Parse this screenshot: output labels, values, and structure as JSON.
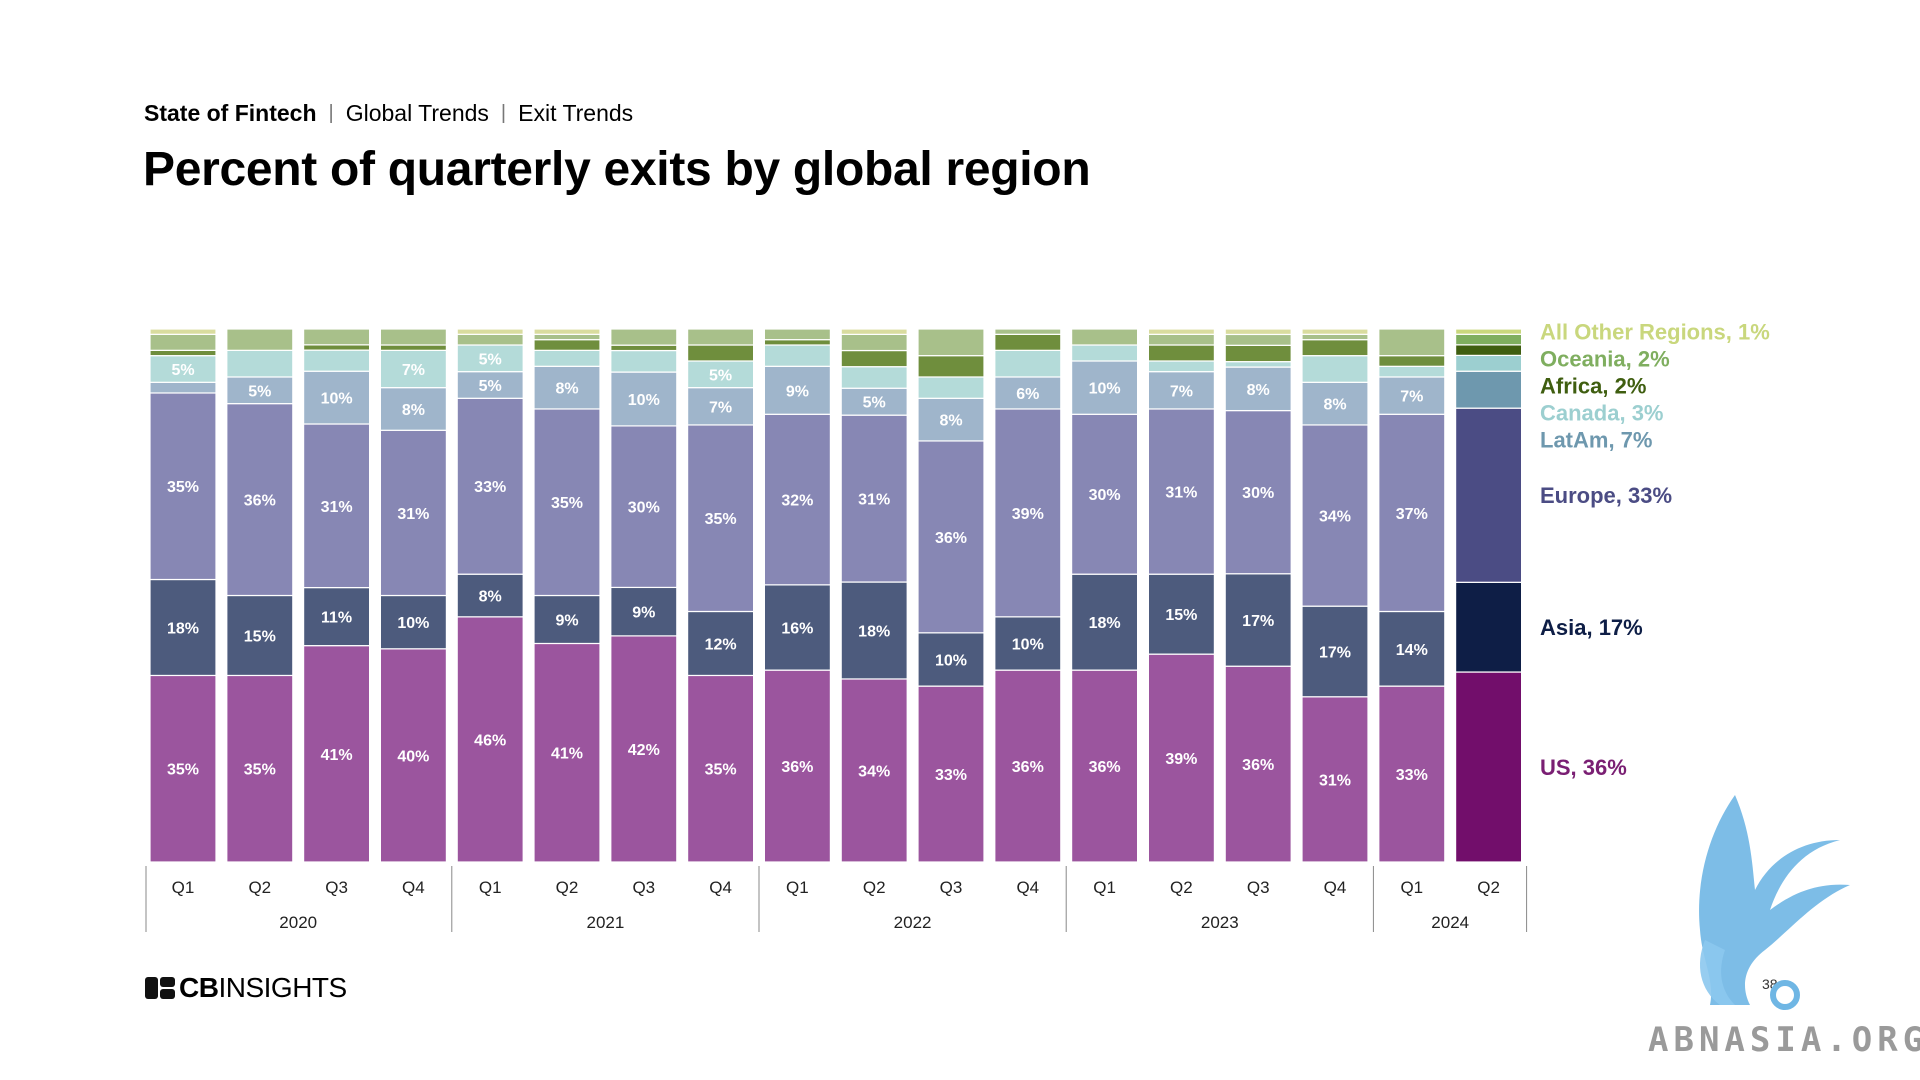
{
  "header": {
    "breadcrumb": [
      "State of Fintech",
      "Global Trends",
      "Exit Trends"
    ],
    "separator": "|",
    "title": "Percent of quarterly exits by global region"
  },
  "footer": {
    "logo_cb": "CB",
    "logo_insights": "INSIGHTS",
    "page_number": "38",
    "watermark": "ABNASIA.ORG"
  },
  "chart_data": {
    "type": "bar",
    "stacked": true,
    "percent": true,
    "title": "",
    "xlabel": "",
    "ylabel": "",
    "ylim": [
      0,
      100
    ],
    "grid": false,
    "legend_placement": "right",
    "categories": [
      "Q1",
      "Q2",
      "Q3",
      "Q4",
      "Q1",
      "Q2",
      "Q3",
      "Q4",
      "Q1",
      "Q2",
      "Q3",
      "Q4",
      "Q1",
      "Q2",
      "Q3",
      "Q4",
      "Q1",
      "Q2"
    ],
    "groups": [
      {
        "label": "2020",
        "count": 4
      },
      {
        "label": "2021",
        "count": 4
      },
      {
        "label": "2022",
        "count": 4
      },
      {
        "label": "2023",
        "count": 4
      },
      {
        "label": "2024",
        "count": 2
      }
    ],
    "series": [
      {
        "name": "US",
        "legend": "US, 36%",
        "color": "#9b559e",
        "color_last": "#720e6b",
        "label_color": "#ffffff",
        "values": [
          35,
          35,
          41,
          40,
          46,
          41,
          42,
          35,
          36,
          34,
          33,
          36,
          36,
          39,
          36,
          31,
          33,
          36
        ],
        "labels": [
          "35%",
          "35%",
          "41%",
          "40%",
          "46%",
          "41%",
          "42%",
          "35%",
          "36%",
          "34%",
          "33%",
          "36%",
          "36%",
          "39%",
          "36%",
          "31%",
          "33%",
          ""
        ]
      },
      {
        "name": "Asia",
        "legend": "Asia, 17%",
        "color": "#4d5b7d",
        "color_last": "#0e1e46",
        "label_color": "#ffffff",
        "values": [
          18,
          15,
          11,
          10,
          8,
          9,
          9,
          12,
          16,
          18,
          10,
          10,
          18,
          15,
          17,
          17,
          14,
          17
        ],
        "labels": [
          "18%",
          "15%",
          "11%",
          "10%",
          "8%",
          "9%",
          "9%",
          "12%",
          "16%",
          "18%",
          "10%",
          "10%",
          "18%",
          "15%",
          "17%",
          "17%",
          "14%",
          ""
        ]
      },
      {
        "name": "Europe",
        "legend": "Europe, 33%",
        "color": "#8787b4",
        "color_last": "#4b4c84",
        "label_color": "#ffffff",
        "values": [
          35,
          36,
          31,
          31,
          33,
          35,
          30,
          35,
          32,
          31,
          36,
          39,
          30,
          31,
          30,
          34,
          37,
          33
        ],
        "labels": [
          "35%",
          "36%",
          "31%",
          "31%",
          "33%",
          "35%",
          "30%",
          "35%",
          "32%",
          "31%",
          "36%",
          "39%",
          "30%",
          "31%",
          "30%",
          "34%",
          "37%",
          ""
        ]
      },
      {
        "name": "LatAm",
        "legend": "LatAm, 7%",
        "color": "#9fb5cb",
        "color_last": "#6e98ae",
        "label_color": "#ffffff",
        "values": [
          2,
          5,
          10,
          8,
          5,
          8,
          10,
          7,
          9,
          5,
          8,
          6,
          10,
          7,
          8,
          8,
          7,
          7
        ],
        "labels": [
          "",
          "5%",
          "10%",
          "8%",
          "5%",
          "8%",
          "10%",
          "7%",
          "9%",
          "5%",
          "8%",
          "6%",
          "10%",
          "7%",
          "8%",
          "8%",
          "7%",
          ""
        ]
      },
      {
        "name": "Canada",
        "legend": "Canada, 3%",
        "color": "#b4dbd9",
        "color_last": "#9ccfd0",
        "label_color": "#ffffff",
        "values": [
          5,
          5,
          4,
          7,
          5,
          3,
          4,
          5,
          4,
          4,
          4,
          5,
          3,
          2,
          1,
          5,
          2,
          3
        ],
        "labels": [
          "5%",
          "",
          "",
          "7%",
          "5%",
          "",
          "",
          "5%",
          "",
          "",
          "",
          "",
          "",
          "",
          "",
          "",
          "",
          ""
        ]
      },
      {
        "name": "Africa",
        "legend": "Africa, 2%",
        "color": "#6f8e3d",
        "color_last": "#3f5e10",
        "label_color": "#ffffff",
        "values": [
          1,
          0,
          1,
          1,
          0,
          2,
          1,
          3,
          1,
          3,
          4,
          3,
          0,
          3,
          3,
          3,
          2,
          2
        ],
        "labels": [
          "",
          "",
          "",
          "",
          "",
          "",
          "",
          "",
          "",
          "",
          "",
          "",
          "",
          "",
          "",
          "",
          "",
          ""
        ]
      },
      {
        "name": "Oceania",
        "legend": "Oceania, 2%",
        "color": "#a8c08a",
        "color_last": "#7fae5f",
        "label_color": "#ffffff",
        "values": [
          3,
          4,
          3,
          3,
          2,
          1,
          3,
          3,
          2,
          3,
          5,
          1,
          3,
          2,
          2,
          1,
          5,
          2
        ],
        "labels": [
          "",
          "",
          "",
          "",
          "",
          "",
          "",
          "",
          "",
          "",
          "",
          "",
          "",
          "",
          "",
          "",
          "",
          ""
        ]
      },
      {
        "name": "All Other Regions",
        "legend": "All Other Regions, 1%",
        "color": "#d9dc9f",
        "color_last": "#c9d77d",
        "label_color": "#ffffff",
        "values": [
          1,
          0,
          0,
          0,
          1,
          1,
          0,
          0,
          0,
          1,
          0,
          0,
          0,
          1,
          1,
          1,
          0,
          1
        ],
        "labels": [
          "",
          "",
          "",
          "",
          "",
          "",
          "",
          "",
          "",
          "",
          "",
          "",
          "",
          "",
          "",
          "",
          "",
          ""
        ]
      }
    ],
    "legend_colors": {
      "US": "#7a1f73",
      "Asia": "#0e1e46",
      "Europe": "#4b4c84",
      "LatAm": "#6e98ae",
      "Canada": "#9ccfd0",
      "Africa": "#3f5e10",
      "Oceania": "#7fae5f",
      "All Other Regions": "#c9d77d"
    }
  }
}
